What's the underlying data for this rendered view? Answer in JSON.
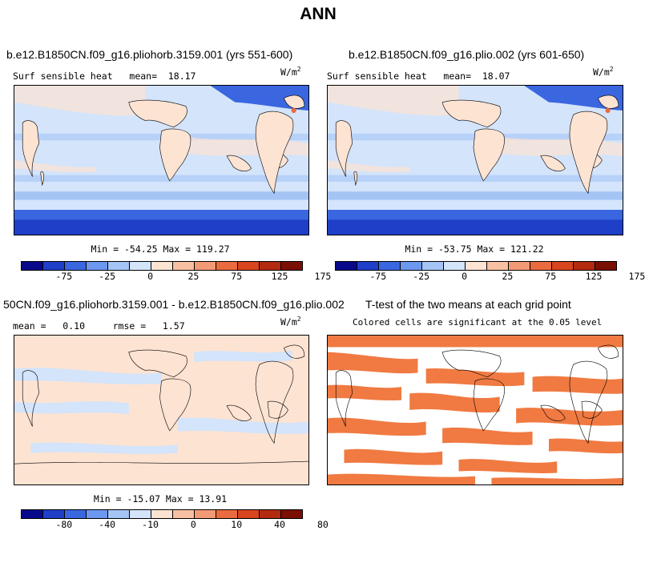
{
  "title": "ANN",
  "panels": [
    {
      "title": "b.e12.B1850CN.f09_g16.pliohorb.3159.001 (yrs 551-600)",
      "subtitle": "Surf sensible heat   mean=  18.17",
      "units_base": "W/m",
      "units_exp": "2",
      "stats": "Min = -54.25 Max = 119.27",
      "ticks": [
        "-75",
        "-25",
        "0",
        "25",
        "75",
        "125",
        "175"
      ]
    },
    {
      "title": "b.e12.B1850CN.f09_g16.plio.002 (yrs 601-650)",
      "subtitle": "Surf sensible heat   mean=  18.07",
      "units_base": "W/m",
      "units_exp": "2",
      "stats": "Min = -53.75 Max = 121.22",
      "ticks": [
        "-75",
        "-25",
        "0",
        "25",
        "75",
        "125",
        "175"
      ]
    },
    {
      "title": "50CN.f09_g16.pliohorb.3159.001 - b.e12.B1850CN.f09_g16.plio.002",
      "subtitle": "mean =   0.10     rmse =   1.57",
      "units_base": "W/m",
      "units_exp": "2",
      "stats": "Min = -15.07 Max = 13.91",
      "ticks": [
        "-80",
        "-40",
        "-10",
        "0",
        "10",
        "40",
        "80"
      ]
    },
    {
      "title": "T-test of the two means at each grid point",
      "subtitle": "Colored cells are significant at the 0.05 level"
    }
  ],
  "colors": {
    "colorbar": [
      "#08088a",
      "#1f3fc8",
      "#3a66e0",
      "#6d98ef",
      "#a5c4f6",
      "#d3e4fb",
      "#fde3d2",
      "#f8c0a2",
      "#f29a75",
      "#ea6b3f",
      "#d8451f",
      "#b22a10",
      "#7a0f04"
    ],
    "ocean_main": "#d3e4fb",
    "ocean_deep": "#a5c4f6",
    "polar": "#3a66e0",
    "land_warm": "#fde3d2",
    "land_hot": "#f8c0a2",
    "diff_pos": "#fde3d2",
    "diff_neg": "#d3e4fb",
    "significant": "#f07a42"
  }
}
